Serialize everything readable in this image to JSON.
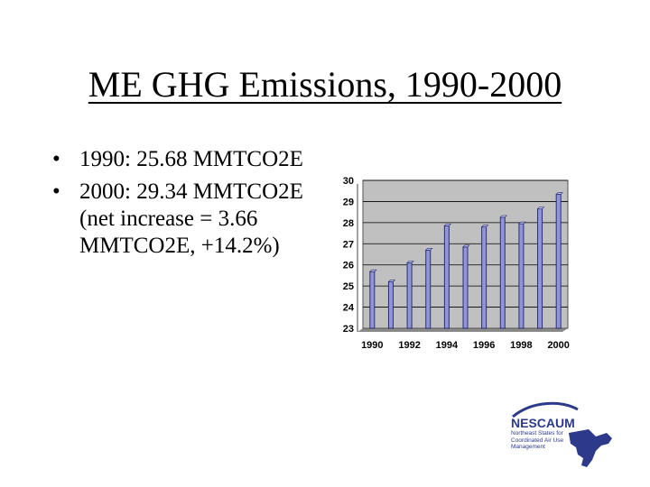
{
  "slide": {
    "title": "ME GHG Emissions, 1990-2000",
    "bullets": [
      {
        "marker": "•",
        "text": "1990: 25.68 MMTCO2E"
      },
      {
        "marker": "•",
        "text": "2000: 29.34 MMTCO2E (net increase = 3.66 MMTCO2E, +14.2%)"
      }
    ]
  },
  "chart_data": {
    "type": "bar",
    "title": "",
    "xlabel": "",
    "ylabel": "",
    "categories": [
      "1990",
      "1991",
      "1992",
      "1993",
      "1994",
      "1995",
      "1996",
      "1997",
      "1998",
      "1999",
      "2000"
    ],
    "values": [
      25.68,
      25.2,
      26.1,
      26.7,
      27.85,
      26.85,
      27.8,
      28.25,
      27.95,
      28.65,
      29.34
    ],
    "x_tick_labels": [
      "1990",
      "1992",
      "1994",
      "1996",
      "1998",
      "2000"
    ],
    "y_ticks": [
      "23",
      "24",
      "25",
      "26",
      "27",
      "28",
      "29",
      "30"
    ],
    "ylim": [
      23,
      30
    ],
    "grid": true,
    "legend": "none",
    "colors": {
      "plot_bg": "#c0c0c0",
      "bar": "#8f95d6",
      "bar_edge": "#2b2f73",
      "grid": "#000000"
    }
  },
  "logo": {
    "name": "NESCAUM",
    "tagline": "Northeast States for Coordinated Air Use Management",
    "color": "#2d3a8c"
  }
}
